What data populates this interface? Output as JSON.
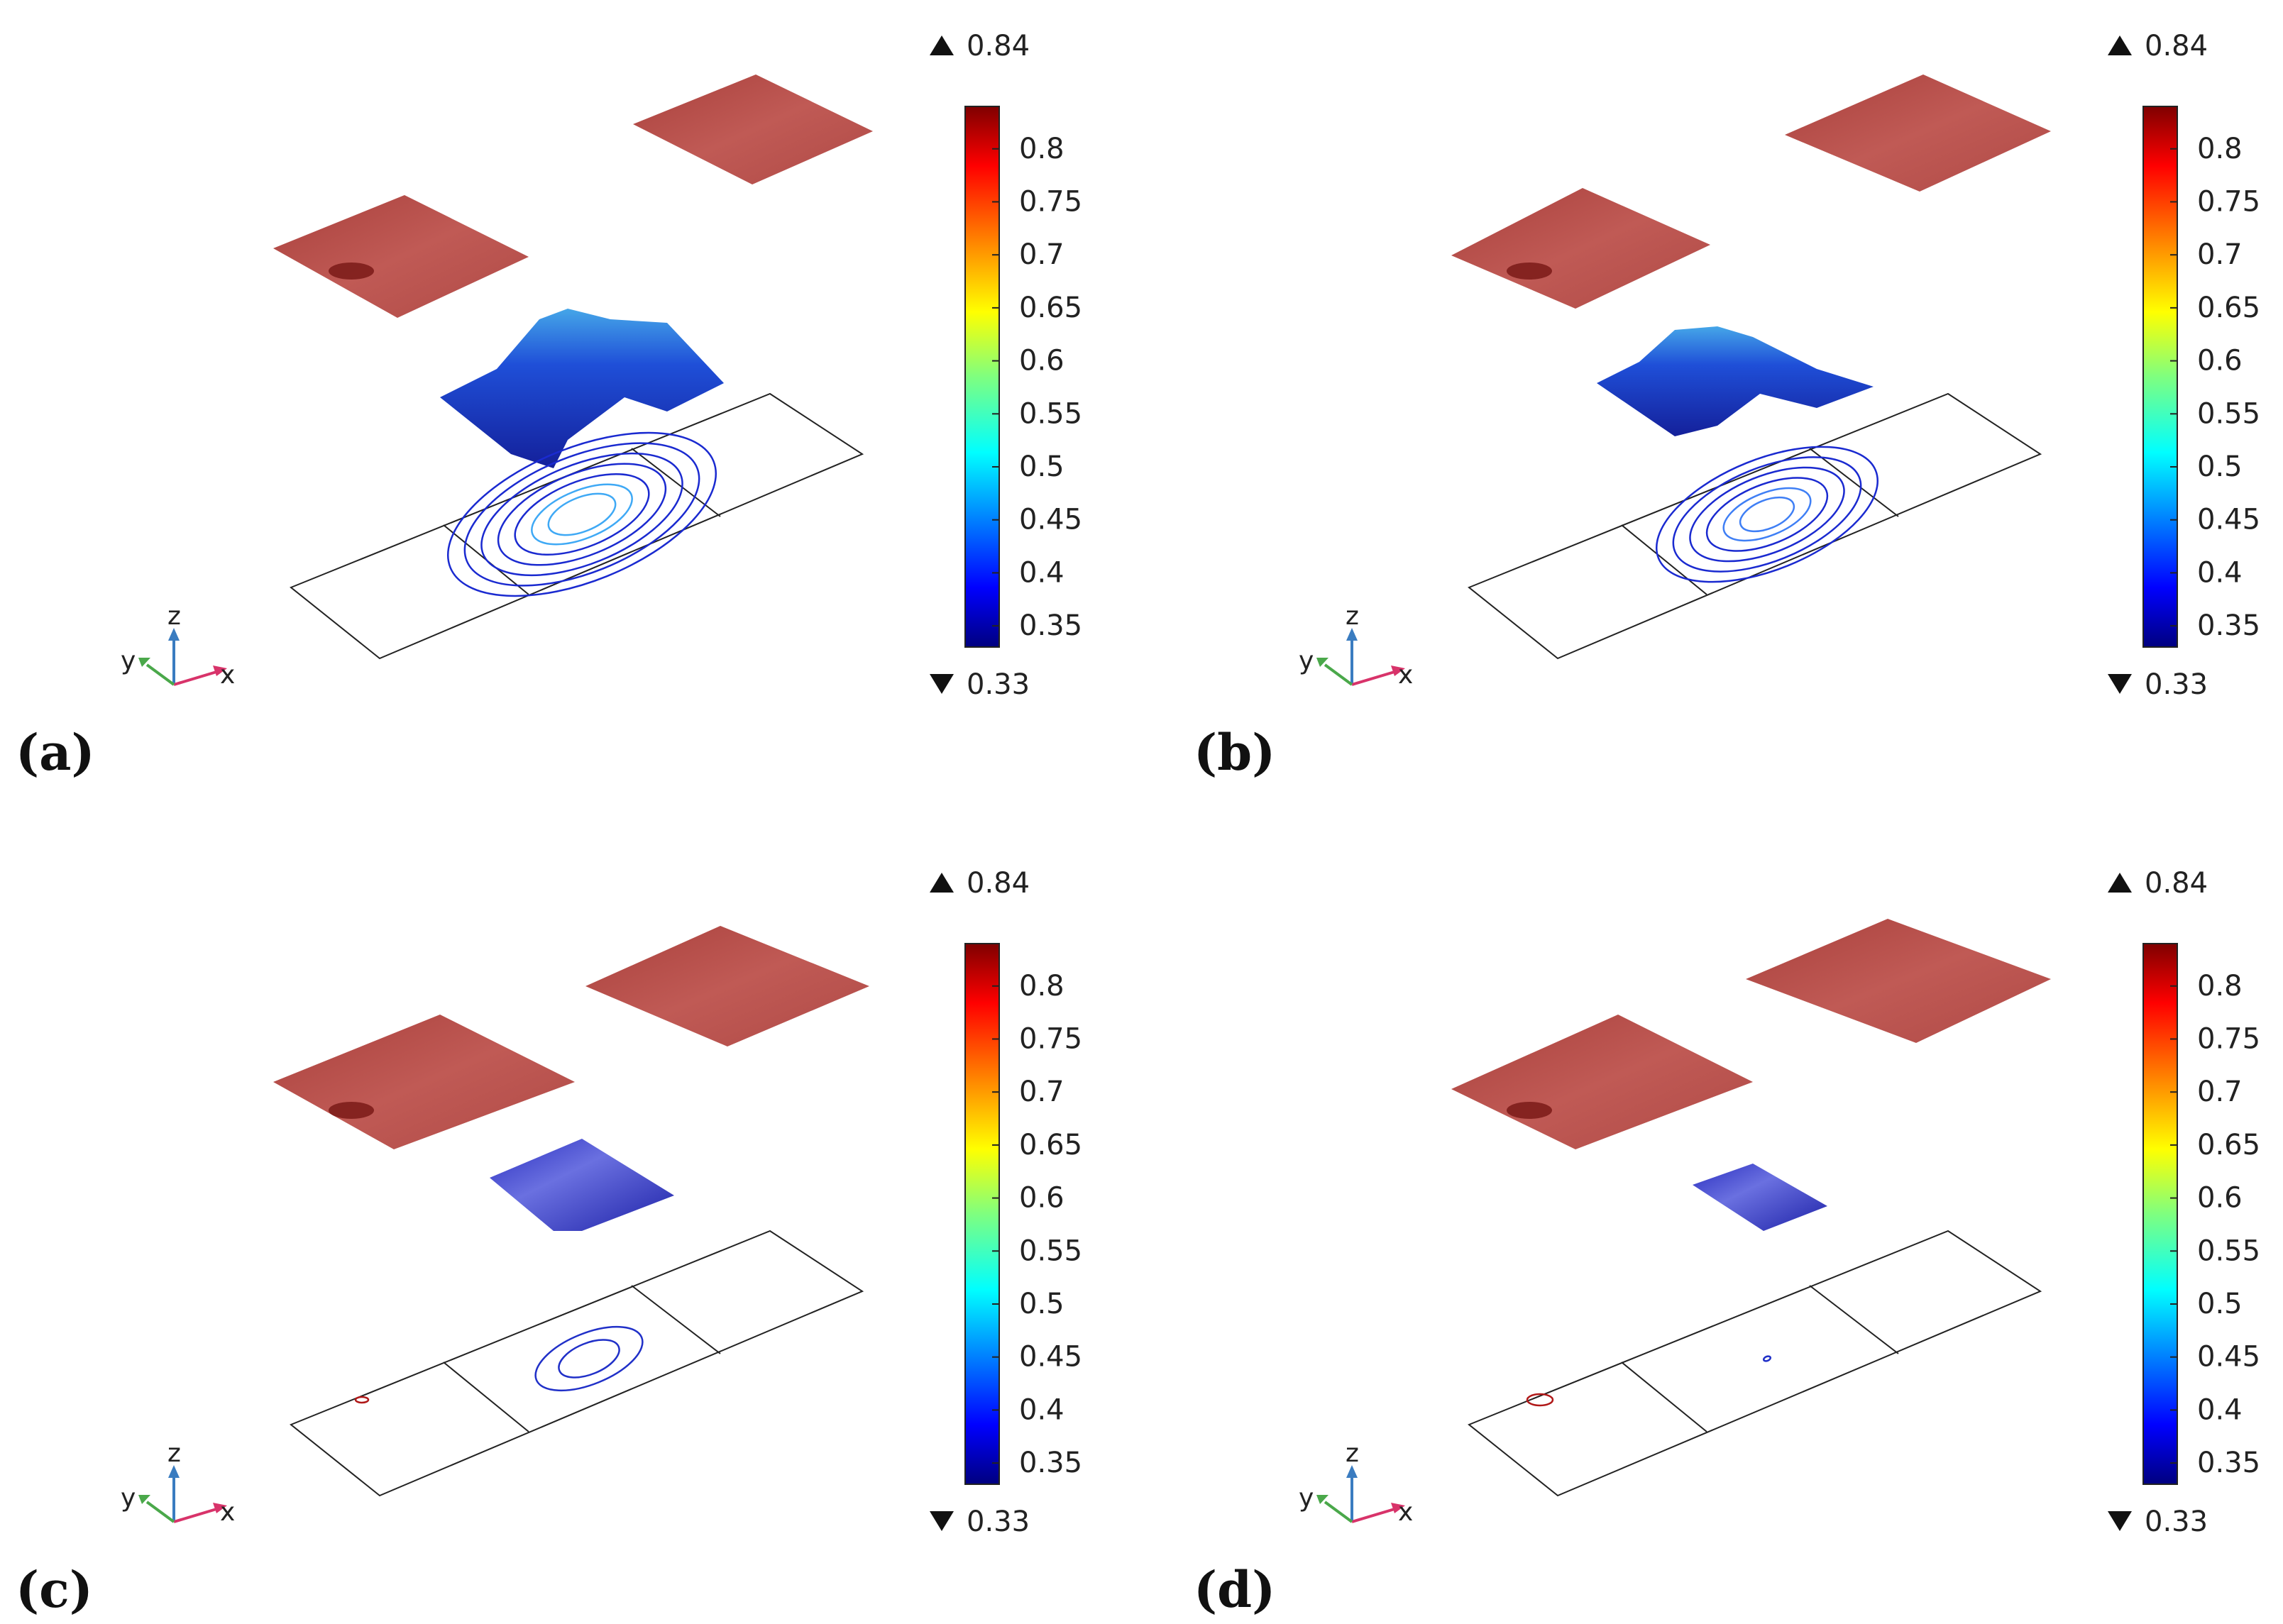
{
  "chart_data": [
    {
      "type": "surface",
      "panel_label": "(a)",
      "colorbar": {
        "max_label": "0.84",
        "min_label": "0.33",
        "ticks": [
          "0.8",
          "0.75",
          "0.7",
          "0.65",
          "0.6",
          "0.55",
          "0.5",
          "0.45",
          "0.4",
          "0.35"
        ],
        "range": [
          0.33,
          0.84
        ]
      },
      "axis_labels": {
        "x": "x",
        "y": "y",
        "z": "z"
      },
      "colors": {
        "high_surface": "#b8504c",
        "low_surface": "#2233cc",
        "contour": "#1a2ad0"
      }
    },
    {
      "type": "surface",
      "panel_label": "(b)",
      "colorbar": {
        "max_label": "0.84",
        "min_label": "0.33",
        "ticks": [
          "0.8",
          "0.75",
          "0.7",
          "0.65",
          "0.6",
          "0.55",
          "0.5",
          "0.45",
          "0.4",
          "0.35"
        ],
        "range": [
          0.33,
          0.84
        ]
      },
      "axis_labels": {
        "x": "x",
        "y": "y",
        "z": "z"
      }
    },
    {
      "type": "surface",
      "panel_label": "(c)",
      "colorbar": {
        "max_label": "0.84",
        "min_label": "0.33",
        "ticks": [
          "0.8",
          "0.75",
          "0.7",
          "0.65",
          "0.6",
          "0.55",
          "0.5",
          "0.45",
          "0.4",
          "0.35"
        ],
        "range": [
          0.33,
          0.84
        ]
      },
      "axis_labels": {
        "x": "x",
        "y": "y",
        "z": "z"
      }
    },
    {
      "type": "surface",
      "panel_label": "(d)",
      "colorbar": {
        "max_label": "0.84",
        "min_label": "0.33",
        "ticks": [
          "0.8",
          "0.75",
          "0.7",
          "0.65",
          "0.6",
          "0.55",
          "0.5",
          "0.45",
          "0.4",
          "0.35"
        ],
        "range": [
          0.33,
          0.84
        ]
      },
      "axis_labels": {
        "x": "x",
        "y": "y",
        "z": "z"
      }
    }
  ]
}
